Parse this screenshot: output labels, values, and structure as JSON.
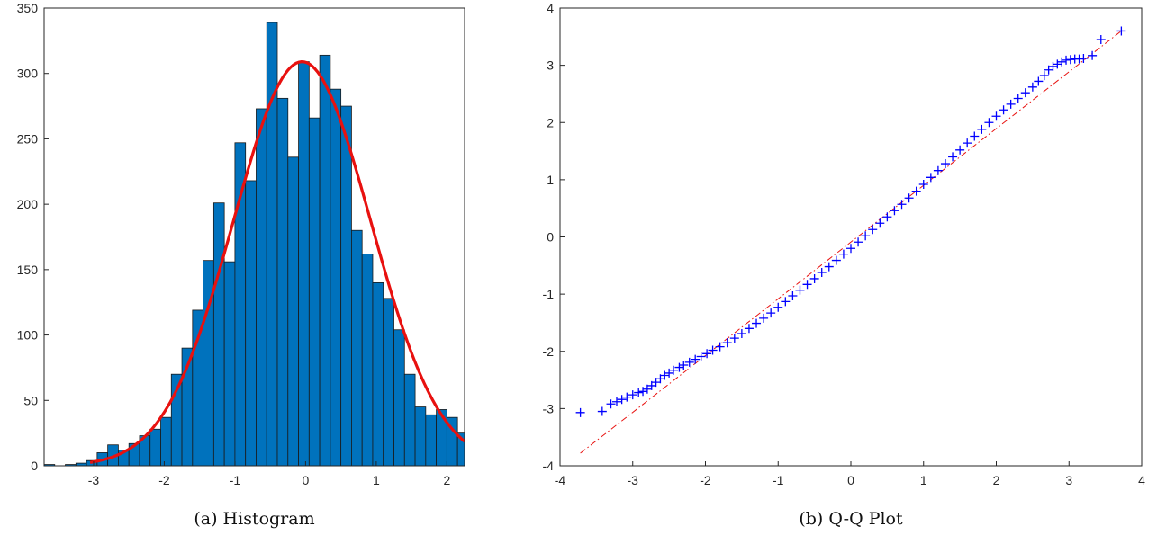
{
  "chart_data": [
    {
      "type": "bar",
      "caption": "(a)  Histogram",
      "xlim": [
        -3.7,
        2.25
      ],
      "ylim": [
        0,
        350
      ],
      "xticks": [
        -3,
        -2,
        -1,
        0,
        1,
        2
      ],
      "xtick_labels": [
        "-3",
        "-2",
        "-1",
        "0",
        "1",
        "2"
      ],
      "yticks": [
        0,
        50,
        100,
        150,
        200,
        250,
        300,
        350
      ],
      "ytick_labels": [
        "0",
        "50",
        "100",
        "150",
        "200",
        "250",
        "300",
        "350"
      ],
      "bin_edges": [
        -3.7,
        -3.55,
        -3.4,
        -3.25,
        -3.1,
        -2.95,
        -2.8,
        -2.65,
        -2.5,
        -2.35,
        -2.2,
        -2.05,
        -1.9,
        -1.75,
        -1.6,
        -1.45,
        -1.3,
        -1.15,
        -1.0,
        -0.85,
        -0.7,
        -0.55,
        -0.4,
        -0.25,
        -0.1,
        0.05,
        0.2,
        0.35,
        0.5,
        0.65,
        0.8,
        0.95,
        1.1,
        1.25,
        1.4,
        1.55,
        1.7,
        1.85,
        2.0,
        2.15,
        2.3
      ],
      "values": [
        1,
        0,
        1,
        2,
        4,
        10,
        16,
        12,
        17,
        23,
        28,
        37,
        70,
        90,
        119,
        157,
        201,
        156,
        247,
        218,
        273,
        339,
        281,
        236,
        309,
        266,
        314,
        288,
        275,
        180,
        162,
        140,
        128,
        104,
        70,
        45,
        39,
        43,
        37,
        25
      ],
      "bar_color": "#0072BD",
      "fit_curve": {
        "type": "normal",
        "peak": 309,
        "mean": -0.05,
        "std": 0.97,
        "x_range": [
          -3.05,
          2.25
        ],
        "color": "#E8110F"
      }
    },
    {
      "type": "scatter",
      "caption": "(b)  Q-Q Plot",
      "xlim": [
        -4,
        4
      ],
      "ylim": [
        -4,
        4
      ],
      "xticks": [
        -4,
        -3,
        -2,
        -1,
        0,
        1,
        2,
        3,
        4
      ],
      "xtick_labels": [
        "-4",
        "-3",
        "-2",
        "-1",
        "0",
        "1",
        "2",
        "3",
        "4"
      ],
      "yticks": [
        -4,
        -3,
        -2,
        -1,
        0,
        1,
        2,
        3,
        4
      ],
      "ytick_labels": [
        "-4",
        "-3",
        "-2",
        "-1",
        "0",
        "1",
        "2",
        "3",
        "4"
      ],
      "marker": "+",
      "marker_color": "#0000FF",
      "points": [
        [
          -3.72,
          -3.07
        ],
        [
          -3.42,
          -3.05
        ],
        [
          -3.3,
          -2.92
        ],
        [
          -3.22,
          -2.88
        ],
        [
          -3.15,
          -2.84
        ],
        [
          -3.08,
          -2.8
        ],
        [
          -3.0,
          -2.76
        ],
        [
          -2.92,
          -2.72
        ],
        [
          -2.86,
          -2.7
        ],
        [
          -2.8,
          -2.66
        ],
        [
          -2.74,
          -2.6
        ],
        [
          -2.68,
          -2.54
        ],
        [
          -2.62,
          -2.48
        ],
        [
          -2.56,
          -2.42
        ],
        [
          -2.5,
          -2.38
        ],
        [
          -2.44,
          -2.33
        ],
        [
          -2.36,
          -2.28
        ],
        [
          -2.3,
          -2.24
        ],
        [
          -2.22,
          -2.19
        ],
        [
          -2.14,
          -2.14
        ],
        [
          -2.06,
          -2.09
        ],
        [
          -1.98,
          -2.04
        ],
        [
          -1.9,
          -1.98
        ],
        [
          -1.8,
          -1.92
        ],
        [
          -1.7,
          -1.85
        ],
        [
          -1.6,
          -1.77
        ],
        [
          -1.5,
          -1.69
        ],
        [
          -1.4,
          -1.6
        ],
        [
          -1.3,
          -1.51
        ],
        [
          -1.2,
          -1.42
        ],
        [
          -1.1,
          -1.33
        ],
        [
          -1.0,
          -1.23
        ],
        [
          -0.9,
          -1.13
        ],
        [
          -0.8,
          -1.03
        ],
        [
          -0.7,
          -0.93
        ],
        [
          -0.6,
          -0.83
        ],
        [
          -0.5,
          -0.73
        ],
        [
          -0.4,
          -0.62
        ],
        [
          -0.3,
          -0.52
        ],
        [
          -0.2,
          -0.41
        ],
        [
          -0.1,
          -0.3
        ],
        [
          0.0,
          -0.2
        ],
        [
          0.1,
          -0.09
        ],
        [
          0.2,
          0.02
        ],
        [
          0.3,
          0.13
        ],
        [
          0.4,
          0.24
        ],
        [
          0.5,
          0.35
        ],
        [
          0.6,
          0.46
        ],
        [
          0.7,
          0.57
        ],
        [
          0.8,
          0.68
        ],
        [
          0.9,
          0.8
        ],
        [
          1.0,
          0.92
        ],
        [
          1.1,
          1.04
        ],
        [
          1.2,
          1.16
        ],
        [
          1.3,
          1.28
        ],
        [
          1.4,
          1.4
        ],
        [
          1.5,
          1.52
        ],
        [
          1.6,
          1.64
        ],
        [
          1.7,
          1.76
        ],
        [
          1.8,
          1.88
        ],
        [
          1.9,
          2.0
        ],
        [
          2.0,
          2.11
        ],
        [
          2.1,
          2.22
        ],
        [
          2.2,
          2.32
        ],
        [
          2.3,
          2.42
        ],
        [
          2.4,
          2.52
        ],
        [
          2.5,
          2.62
        ],
        [
          2.58,
          2.72
        ],
        [
          2.66,
          2.82
        ],
        [
          2.72,
          2.92
        ],
        [
          2.78,
          2.98
        ],
        [
          2.84,
          3.02
        ],
        [
          2.9,
          3.06
        ],
        [
          2.96,
          3.09
        ],
        [
          3.02,
          3.1
        ],
        [
          3.08,
          3.11
        ],
        [
          3.14,
          3.11
        ],
        [
          3.2,
          3.12
        ],
        [
          3.32,
          3.17
        ],
        [
          3.44,
          3.45
        ],
        [
          3.72,
          3.6
        ]
      ],
      "reference_line": {
        "from": [
          -3.72,
          -3.78
        ],
        "to": [
          3.72,
          3.6
        ],
        "style": "dash-dot",
        "color": "#E8110F"
      }
    }
  ]
}
